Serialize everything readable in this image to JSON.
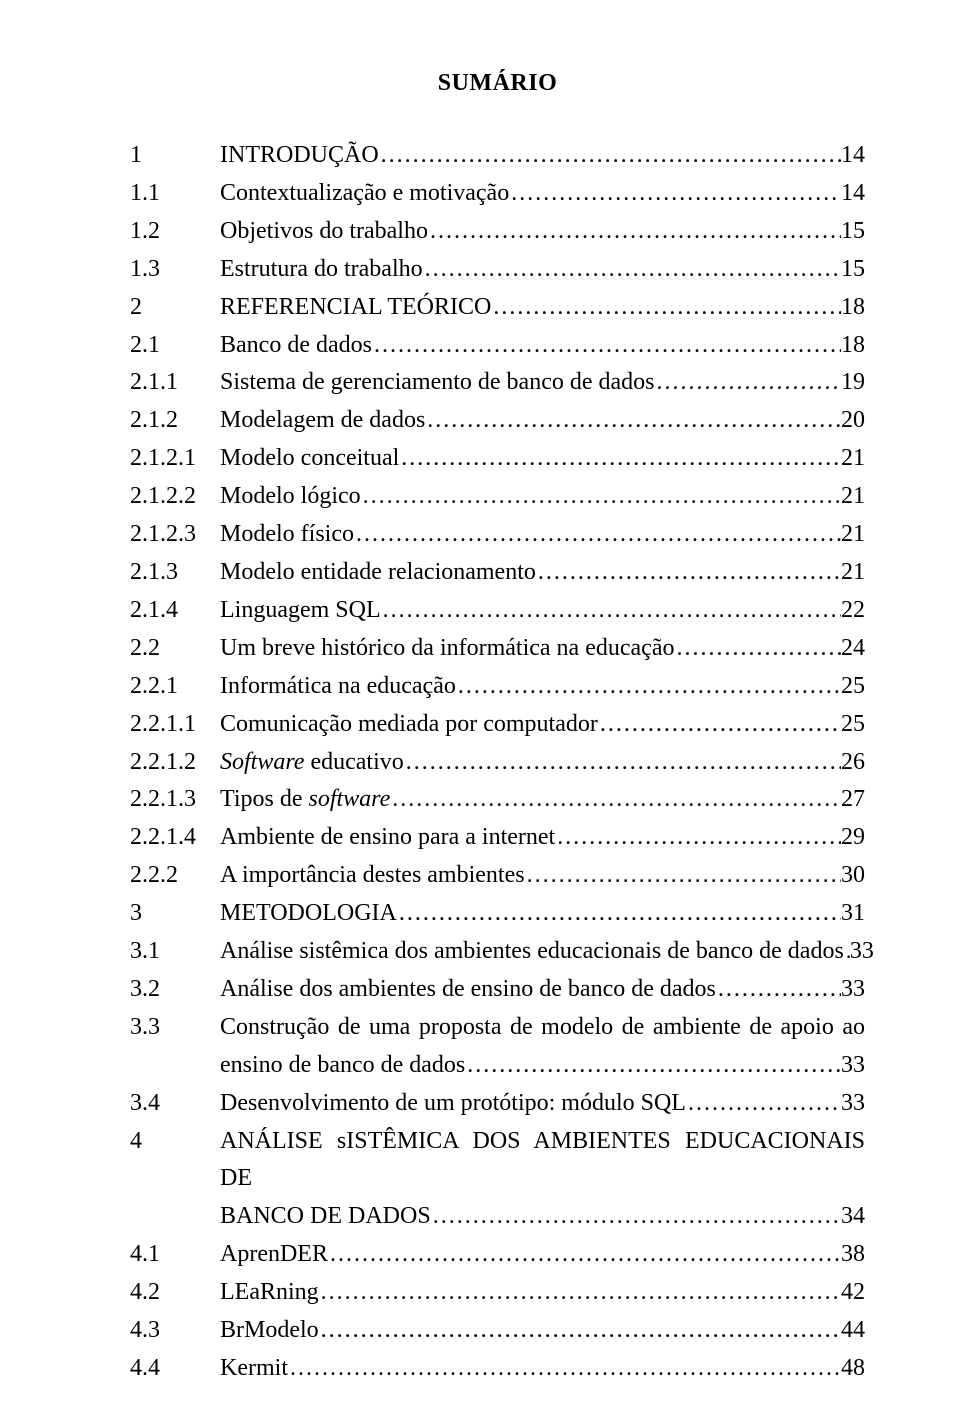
{
  "title": "SUMÁRIO",
  "font_family": "Times New Roman",
  "text_color": "#000000",
  "background_color": "#ffffff",
  "entries": [
    {
      "num": "1",
      "text": "INTRODUÇÃO",
      "page": "14"
    },
    {
      "num": "1.1",
      "text": "Contextualização e motivação",
      "page": "14"
    },
    {
      "num": "1.2",
      "text": "Objetivos do trabalho",
      "page": "15"
    },
    {
      "num": "1.3",
      "text": "Estrutura do trabalho",
      "page": "15"
    },
    {
      "num": "2",
      "text": "REFERENCIAL TEÓRICO",
      "page": "18"
    },
    {
      "num": "2.1",
      "text": "Banco de dados",
      "page": "18"
    },
    {
      "num": "2.1.1",
      "text": "Sistema de gerenciamento de banco de dados",
      "page": "19"
    },
    {
      "num": "2.1.2",
      "text": "Modelagem de dados",
      "page": "20"
    },
    {
      "num": "2.1.2.1",
      "text": "Modelo conceitual",
      "page": "21"
    },
    {
      "num": "2.1.2.2",
      "text": "Modelo lógico",
      "page": "21"
    },
    {
      "num": "2.1.2.3",
      "text": "Modelo físico",
      "page": "21"
    },
    {
      "num": "2.1.3",
      "text": "Modelo entidade relacionamento",
      "page": "21"
    },
    {
      "num": "2.1.4",
      "text": "Linguagem SQL",
      "page": "22"
    },
    {
      "num": "2.2",
      "text": "Um breve histórico da informática na educação",
      "page": "24"
    },
    {
      "num": "2.2.1",
      "text": "Informática na educação",
      "page": "25"
    },
    {
      "num": "2.2.1.1",
      "text": "Comunicação mediada por computador",
      "page": "25"
    },
    {
      "num": "2.2.1.2",
      "text_html": "<span class=\"italic\">Software</span> educativo",
      "page": "26"
    },
    {
      "num": "2.2.1.3",
      "text_html": "Tipos de <span class=\"italic\">software</span>",
      "page": "27"
    },
    {
      "num": "2.2.1.4",
      "text": "Ambiente de ensino para a internet",
      "page": "29"
    },
    {
      "num": "2.2.2",
      "text": "A importância destes ambientes",
      "page": "30"
    },
    {
      "num": "3",
      "text": "METODOLOGIA",
      "page": "31"
    },
    {
      "num": "3.1",
      "text": "Análise sistêmica dos ambientes educacionais de banco de dados",
      "page": "33",
      "tight": true
    },
    {
      "num": "3.2",
      "text": "Análise dos ambientes de ensino de banco de dados",
      "page": "33"
    },
    {
      "num": "3.3",
      "lines": [
        "Construção de uma proposta de modelo de ambiente de apoio ao",
        "ensino de banco de dados"
      ],
      "page": "33"
    },
    {
      "num": "3.4",
      "text": "Desenvolvimento de um protótipo: módulo SQL",
      "page": "33"
    },
    {
      "num": "4",
      "lines": [
        "ANÁLISE sISTÊMICA DOS AMBIENTES EDUCACIONAIS DE",
        "BANCO DE DADOS"
      ],
      "page": "34"
    },
    {
      "num": "4.1",
      "text": "AprenDER",
      "page": "38"
    },
    {
      "num": "4.2",
      "text": "LEaRning",
      "page": "42"
    },
    {
      "num": "4.3",
      "text": "BrModelo",
      "page": "44"
    },
    {
      "num": "4.4",
      "text": "Kermit",
      "page": "48"
    }
  ]
}
